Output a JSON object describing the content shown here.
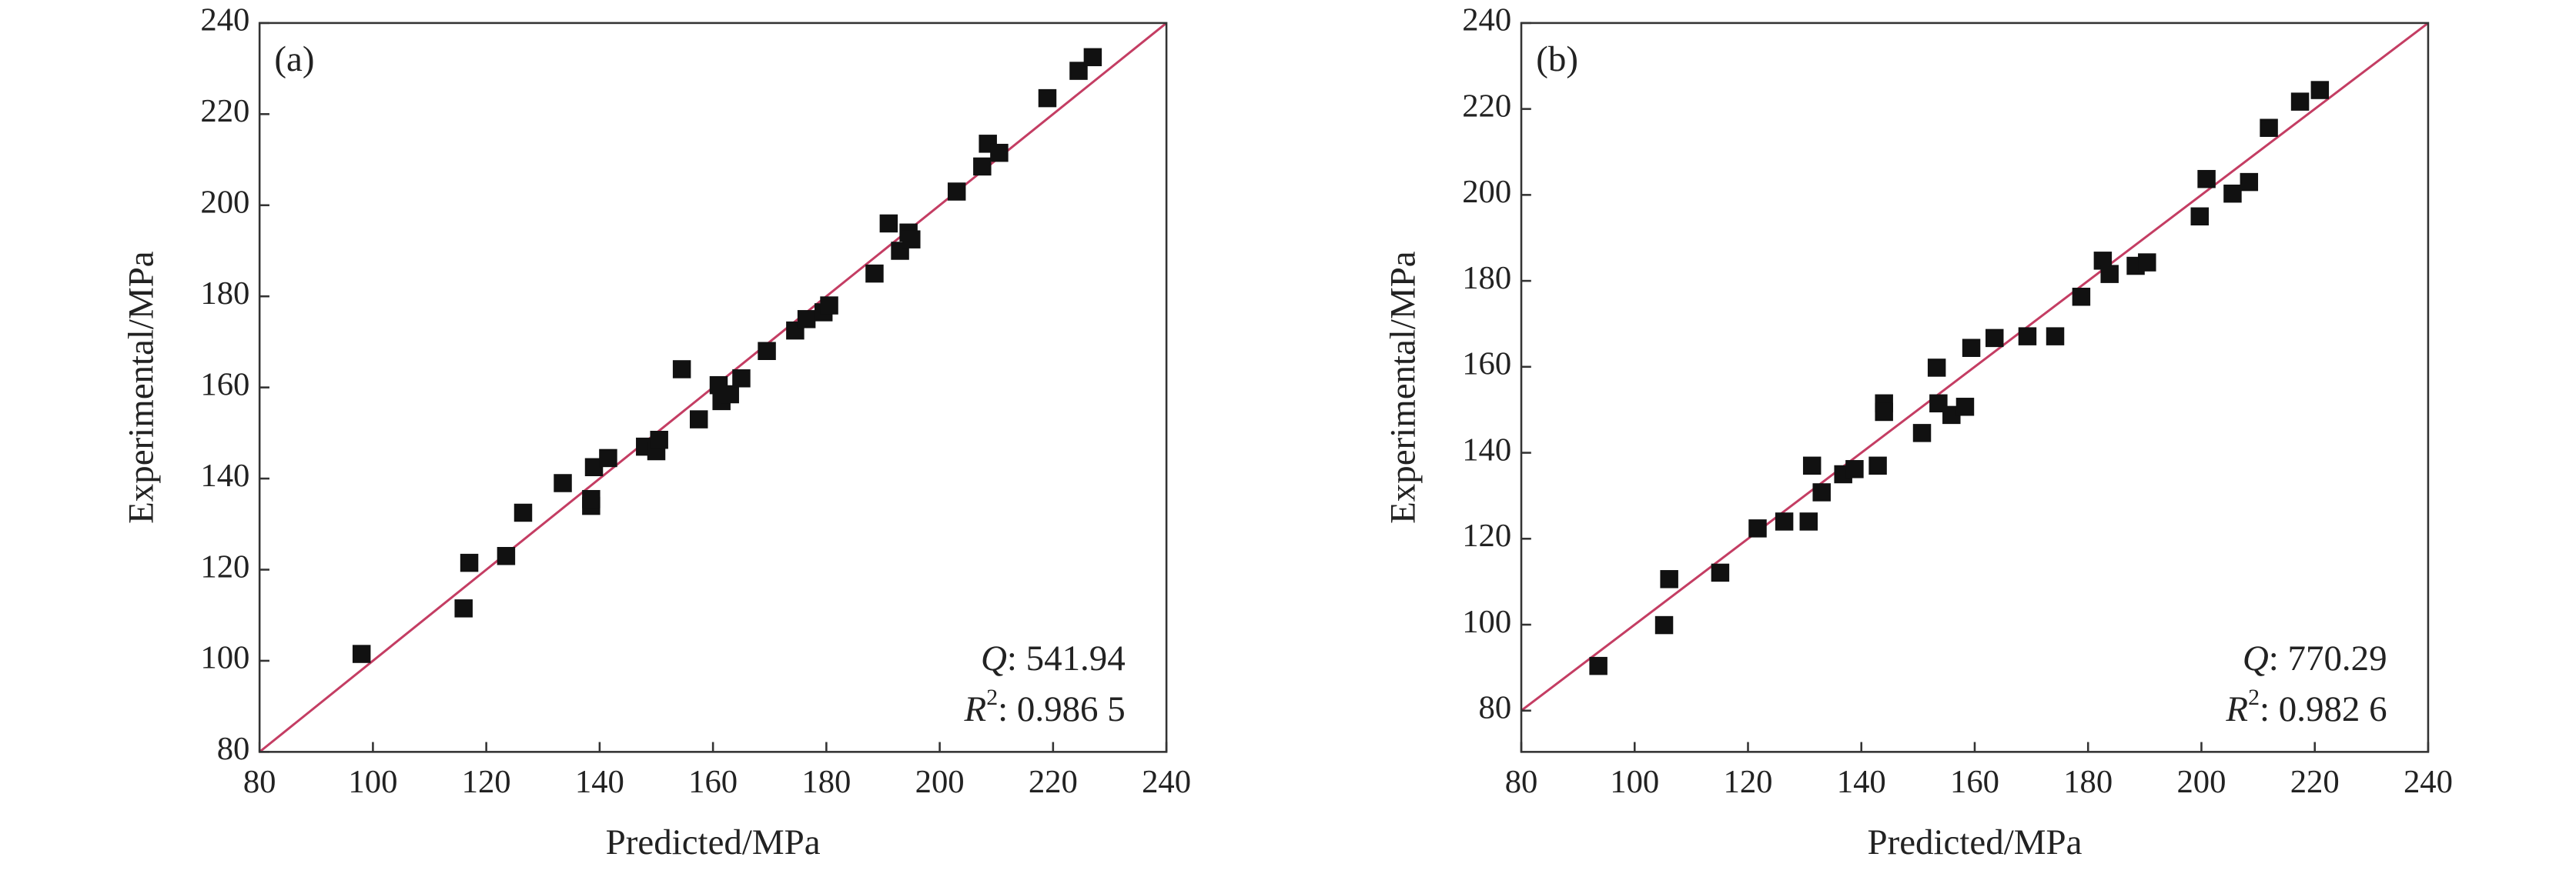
{
  "chart_data": [
    {
      "type": "scatter",
      "panel_label": "(a)",
      "x_label": "Predicted/MPa",
      "y_label": "Experimental/MPa",
      "xlim": [
        80,
        240
      ],
      "ylim": [
        80,
        240
      ],
      "xticks": [
        80,
        100,
        120,
        140,
        160,
        180,
        200,
        220,
        240
      ],
      "yticks": [
        80,
        100,
        120,
        140,
        160,
        180,
        200,
        220,
        240
      ],
      "color": "#111111",
      "annotation": {
        "q_symbol": "Q",
        "q_text": ": 541.94",
        "r_symbol": "R",
        "r_power": "2",
        "r_text": ": 0.986 5"
      },
      "x": [
        98,
        116,
        117,
        123.5,
        126.5,
        133.5,
        138.5,
        138.5,
        139,
        141.5,
        148,
        150,
        150.5,
        154.5,
        157.5,
        161,
        161.5,
        163,
        165,
        169.5,
        174.5,
        176.5,
        179.5,
        180.5,
        188.5,
        191,
        193,
        194.5,
        195,
        203,
        207.5,
        208.5,
        210.5,
        219,
        224.5,
        227
      ],
      "y": [
        101.5,
        111.5,
        121.5,
        123,
        132.5,
        139,
        134,
        135.5,
        142.5,
        144.5,
        147,
        146,
        148.5,
        164,
        153,
        160.5,
        157,
        158.5,
        162,
        168,
        172.5,
        175,
        176.5,
        178,
        185,
        196,
        190,
        194,
        192.5,
        203,
        208.5,
        213.5,
        211.5,
        223.5,
        229.5,
        232.5
      ]
    },
    {
      "type": "scatter",
      "panel_label": "(b)",
      "x_label": "Predicted/MPa",
      "y_label": "Experimental/MPa",
      "xlim": [
        80,
        240
      ],
      "ylim": [
        70.4,
        240
      ],
      "xticks": [
        80,
        100,
        120,
        140,
        160,
        180,
        200,
        220,
        240
      ],
      "yticks": [
        80,
        100,
        120,
        140,
        160,
        180,
        200,
        220,
        240
      ],
      "color": "#111111",
      "annotation": {
        "q_symbol": "Q",
        "q_text": ": 770.29",
        "r_symbol": "R",
        "r_power": "2",
        "r_text": ": 0.982 6"
      },
      "x": [
        93.6,
        105.2,
        106.1,
        115.1,
        121.7,
        126.4,
        130.7,
        131.3,
        133,
        136.8,
        138.8,
        142.9,
        144,
        144,
        150.7,
        153.3,
        153.6,
        155.9,
        158.3,
        159.4,
        163.5,
        169.3,
        174.2,
        178.8,
        182.6,
        183.8,
        188.4,
        190.4,
        199.7,
        200.9,
        205.5,
        208.4,
        211.9,
        217.4,
        220.9
      ],
      "y": [
        90.4,
        99.9,
        110.6,
        112.1,
        122.4,
        124,
        124,
        137,
        130.8,
        135,
        136.2,
        137,
        151.5,
        149.5,
        144.6,
        159.8,
        151.5,
        148.8,
        150.7,
        164.4,
        166.7,
        167.1,
        167.1,
        176.3,
        184.7,
        181.6,
        183.5,
        184.3,
        195,
        203.7,
        200.3,
        203,
        215.6,
        221.7,
        224.4
      ]
    }
  ]
}
